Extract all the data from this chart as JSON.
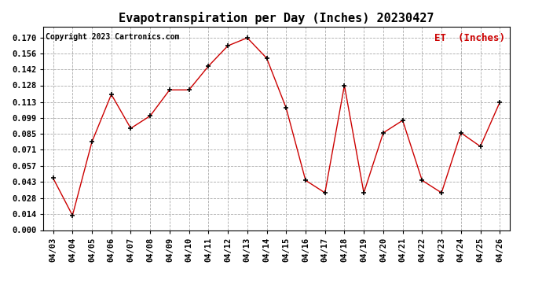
{
  "title": "Evapotranspiration per Day (Inches) 20230427",
  "copyright": "Copyright 2023 Cartronics.com",
  "legend_label": "ET  (Inches)",
  "dates": [
    "04/03",
    "04/04",
    "04/05",
    "04/06",
    "04/07",
    "04/08",
    "04/09",
    "04/10",
    "04/11",
    "04/12",
    "04/13",
    "04/14",
    "04/15",
    "04/16",
    "04/17",
    "04/18",
    "04/19",
    "04/20",
    "04/21",
    "04/22",
    "04/23",
    "04/24",
    "04/25",
    "04/26"
  ],
  "values": [
    0.046,
    0.013,
    0.078,
    0.12,
    0.09,
    0.101,
    0.124,
    0.124,
    0.145,
    0.163,
    0.17,
    0.152,
    0.108,
    0.044,
    0.033,
    0.128,
    0.033,
    0.086,
    0.097,
    0.044,
    0.033,
    0.086,
    0.074,
    0.113
  ],
  "line_color": "#cc0000",
  "marker_color": "#000000",
  "grid_color": "#aaaaaa",
  "background_color": "#ffffff",
  "title_fontsize": 11,
  "copyright_fontsize": 7,
  "legend_fontsize": 9,
  "tick_fontsize": 7.5,
  "ylim": [
    0.0,
    0.18
  ],
  "yticks": [
    0.0,
    0.014,
    0.028,
    0.043,
    0.057,
    0.071,
    0.085,
    0.099,
    0.113,
    0.128,
    0.142,
    0.156,
    0.17
  ]
}
